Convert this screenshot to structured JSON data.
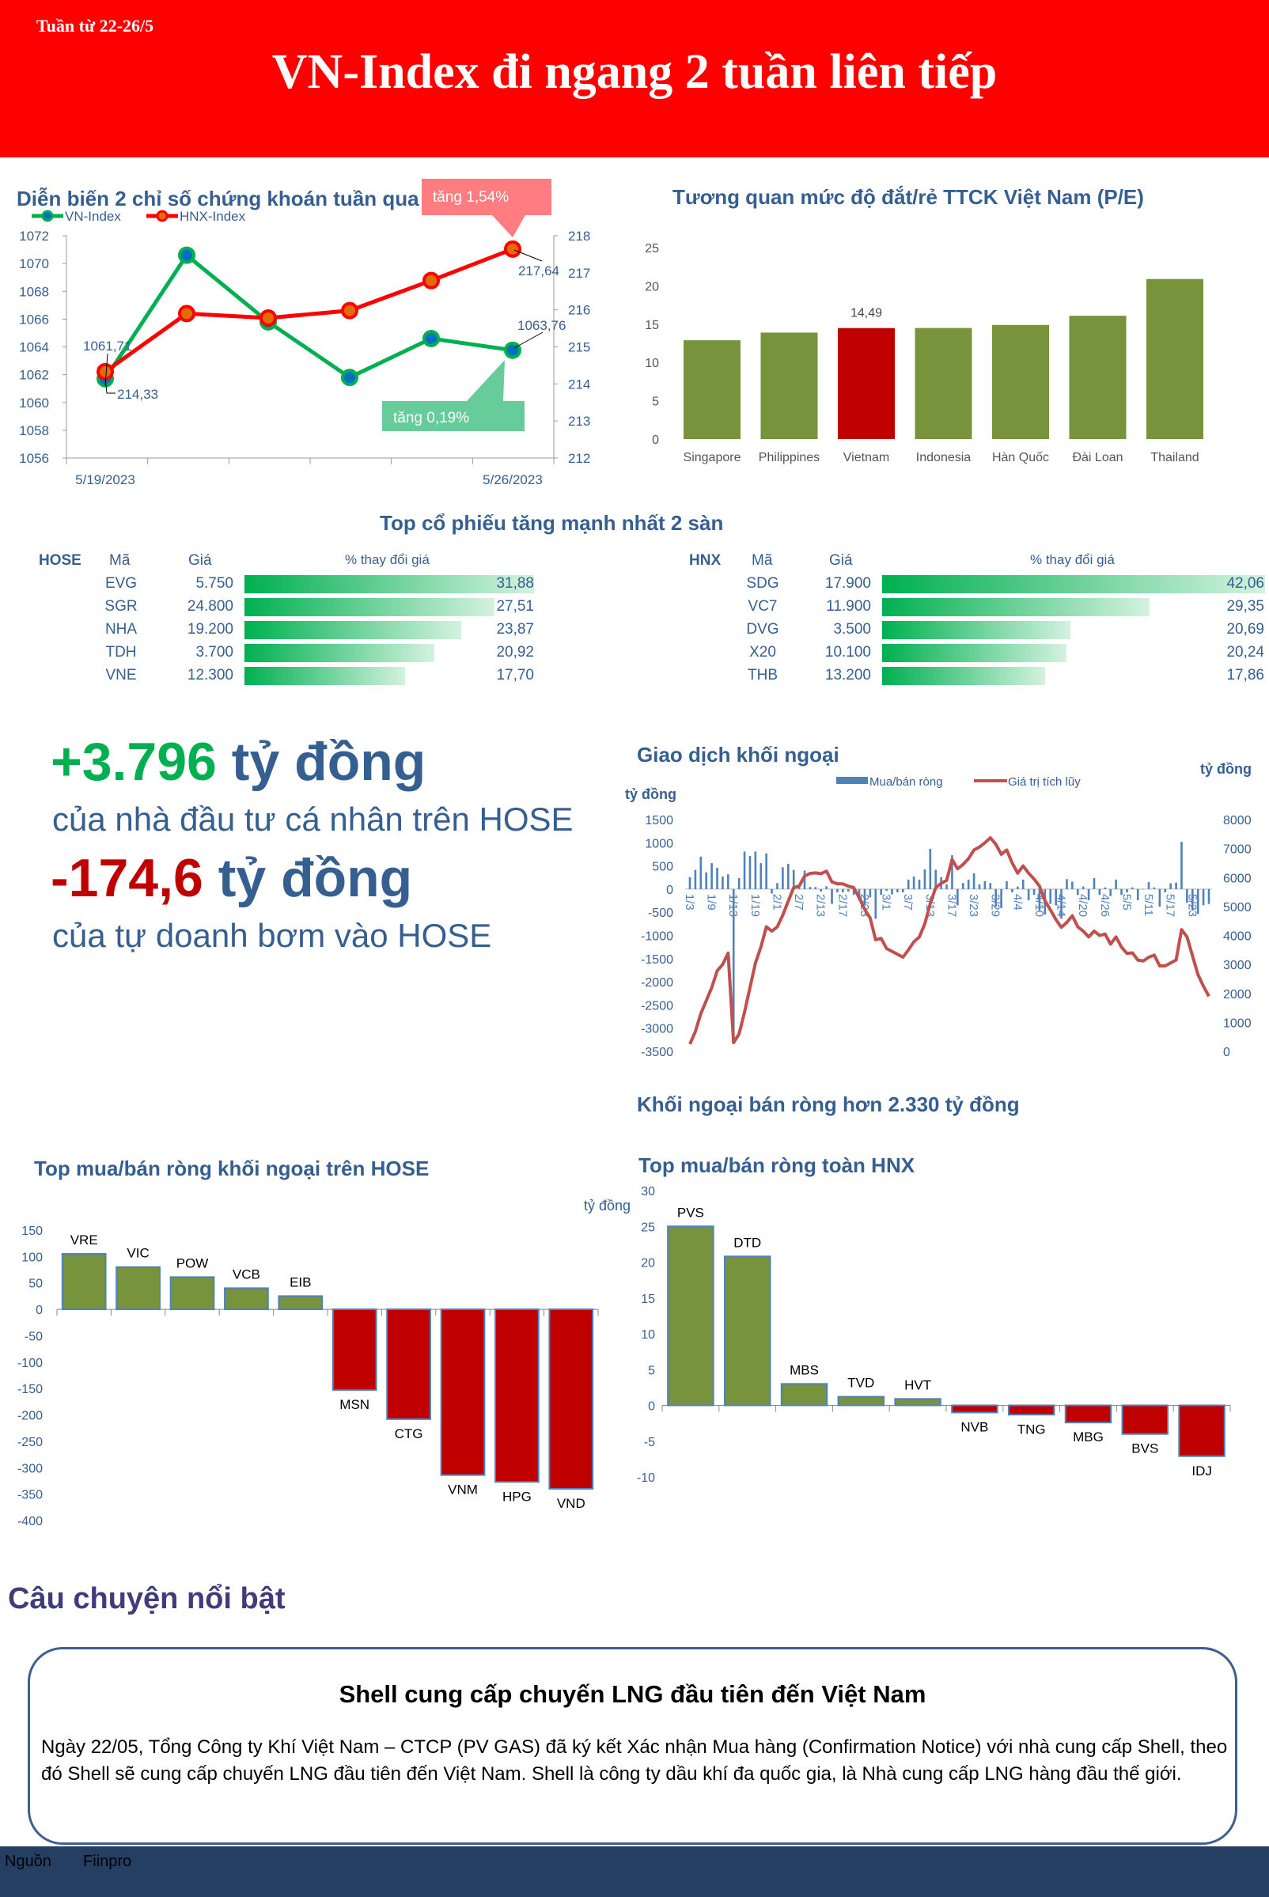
{
  "header": {
    "week": "Tuần từ 22-26/5",
    "title": "VN-Index đi ngang 2 tuần liên tiếp"
  },
  "colors": {
    "header_bg": "#ff0000",
    "green": "#00b050",
    "red": "#c00000",
    "olive": "#77933c",
    "blue_text": "#365f91",
    "footer_bg": "#253f63"
  },
  "top_stocks": {
    "title": "Top cổ phiếu tăng mạnh nhất 2 sàn",
    "hose": {
      "exchange": "HOSE",
      "col_code": "Mã",
      "col_price": "Giá",
      "col_change": "% thay đổi giá",
      "rows": [
        {
          "code": "EVG",
          "price": "5.750",
          "change": "31,88",
          "value": 31.88
        },
        {
          "code": "SGR",
          "price": "24.800",
          "change": "27,51",
          "value": 27.51
        },
        {
          "code": "NHA",
          "price": "19.200",
          "change": "23,87",
          "value": 23.87
        },
        {
          "code": "TDH",
          "price": "3.700",
          "change": "20,92",
          "value": 20.92
        },
        {
          "code": "VNE",
          "price": "12.300",
          "change": "17,70",
          "value": 17.7
        }
      ]
    },
    "hnx": {
      "exchange": "HNX",
      "col_code": "Mã",
      "col_price": "Giá",
      "col_change": "% thay đổi giá",
      "rows": [
        {
          "code": "SDG",
          "price": "17.900",
          "change": "42,06",
          "value": 42.06
        },
        {
          "code": "VC7",
          "price": "11.900",
          "change": "29,35",
          "value": 29.35
        },
        {
          "code": "DVG",
          "price": "3.500",
          "change": "20,69",
          "value": 20.69
        },
        {
          "code": "X20",
          "price": "10.100",
          "change": "20,24",
          "value": 20.24
        },
        {
          "code": "THB",
          "price": "13.200",
          "change": "17,86",
          "value": 17.86
        }
      ]
    }
  },
  "highlights": {
    "retail_value": "+3.796",
    "retail_unit": "tỷ đồng",
    "retail_text": "của nhà đầu tư cá nhân trên HOSE",
    "prop_value": "-174,6",
    "prop_unit": "tỷ đồng",
    "prop_text": "của tự doanh bơm vào HOSE"
  },
  "foreign_caption": "Khối ngoại bán ròng hơn 2.330 tỷ đồng",
  "story": {
    "section_title": "Câu chuyện nổi bật",
    "title": "Shell cung cấp chuyến LNG đầu tiên đến Việt Nam",
    "body": "Ngày 22/05, Tổng Công ty Khí Việt Nam – CTCP (PV GAS) đã ký kết Xác nhận Mua hàng (Confirmation Notice) với nhà cung cấp Shell, theo đó Shell sẽ cung cấp chuyến LNG đầu tiên đến Việt Nam. Shell là công ty dầu khí đa quốc gia, là Nhà cung cấp LNG hàng đầu thế giới."
  },
  "footer": {
    "source_label": "Nguồn",
    "source": "Fiinpro"
  },
  "chart_data": [
    {
      "type": "line",
      "title": "Diễn biến 2 chỉ số chứng khoán tuần qua",
      "x_tick_labels": [
        "5/19/2023",
        "5/26/2023"
      ],
      "y_left_ticks": [
        "1056",
        "1058",
        "1060",
        "1062",
        "1064",
        "1066",
        "1068",
        "1070",
        "1072"
      ],
      "y_right_ticks": [
        "212",
        "213",
        "214",
        "215",
        "216",
        "217",
        "218"
      ],
      "ylim_left": [
        1056,
        1072
      ],
      "ylim_right": [
        212,
        218
      ],
      "legend": "top-left",
      "series": [
        {
          "name": "VN-Index",
          "axis": "left",
          "color": "#00b050",
          "marker": "#0070c0",
          "values": [
            1061.71,
            1070.6,
            1065.8,
            1061.8,
            1064.6,
            1063.76
          ]
        },
        {
          "name": "HNX-Index",
          "axis": "right",
          "color": "#ff0000",
          "marker": "#e36c09",
          "values": [
            214.33,
            215.9,
            215.78,
            215.98,
            216.79,
            217.64
          ]
        }
      ],
      "data_labels": {
        "vn_first": "1061,71",
        "vn_last": "1063,76",
        "hnx_first": "214,33",
        "hnx_last": "217,64"
      },
      "annotations": {
        "hnx_change": "tăng 1,54%",
        "vn_change": "tăng 0,19%"
      }
    },
    {
      "type": "bar",
      "title": "Tương quan mức độ đắt/rẻ TTCK Việt Nam (P/E)",
      "categories": [
        "Singapore",
        "Philippines",
        "Vietnam",
        "Indonesia",
        "Hàn Quốc",
        "Đài Loan",
        "Thailand"
      ],
      "values": [
        12.9,
        13.9,
        14.49,
        14.5,
        14.9,
        16.1,
        20.9
      ],
      "highlight": "Vietnam",
      "data_label": "14,49",
      "y_ticks": [
        "0",
        "5",
        "10",
        "15",
        "20",
        "25"
      ],
      "ylim": [
        0,
        25
      ]
    },
    {
      "type": "bar+line",
      "title": "Giao dịch khối ngoại",
      "ylabel_left": "tỷ đồng",
      "ylabel_right": "tỷ đồng",
      "legend": "top",
      "y_left_ticks": [
        "1500",
        "1000",
        "500",
        "0",
        "-500",
        "-1000",
        "-1500",
        "-2000",
        "-2500",
        "-3000",
        "-3500"
      ],
      "y_right_ticks": [
        "8000",
        "7000",
        "6000",
        "5000",
        "4000",
        "3000",
        "2000",
        "1000",
        "0"
      ],
      "ylim_left": [
        -3500,
        1500
      ],
      "ylim_right": [
        0,
        8000
      ],
      "date_labels": [
        "1/3",
        "1/9",
        "1/13",
        "1/19",
        "2/1",
        "2/7",
        "2/13",
        "2/17",
        "2/23",
        "3/1",
        "3/7",
        "3/13",
        "3/17",
        "3/23",
        "3/29",
        "4/4",
        "4/10",
        "4/14",
        "4/20",
        "4/26",
        "5/5",
        "5/11",
        "5/17",
        "5/23"
      ],
      "series": [
        {
          "name": "Mua/bán ròng",
          "type": "bar",
          "color": "#4f81bd",
          "values": [
            255,
            415,
            700,
            360,
            560,
            460,
            270,
            320,
            -3300,
            240,
            810,
            715,
            810,
            560,
            770,
            -95,
            130,
            470,
            545,
            415,
            100,
            400,
            45,
            45,
            -55,
            60,
            -320,
            -70,
            -70,
            -55,
            -125,
            -240,
            -350,
            -180,
            -640,
            -125,
            -40,
            -115,
            -70,
            -70,
            205,
            270,
            205,
            425,
            870,
            415,
            255,
            100,
            730,
            -350,
            130,
            205,
            340,
            100,
            170,
            130,
            -380,
            -410,
            170,
            -70,
            55,
            205,
            -240,
            -125,
            -465,
            -550,
            -320,
            -350,
            -640,
            215,
            160,
            -125,
            55,
            -240,
            240,
            -125,
            35,
            -150,
            205,
            -125,
            -70,
            35,
            -240,
            -10,
            150,
            35,
            -380,
            -70,
            125,
            140,
            1020,
            -295,
            -465,
            -535,
            -350,
            -320
          ]
        },
        {
          "name": "Giá trị tích lũy",
          "type": "line",
          "color": "#c0504d",
          "values": [
            250,
            680,
            1300,
            1750,
            2200,
            2780,
            3000,
            3390,
            300,
            600,
            1350,
            2200,
            3050,
            3600,
            4300,
            4150,
            4300,
            4700,
            5180,
            5650,
            5700,
            6050,
            6140,
            6160,
            6130,
            6220,
            5850,
            5780,
            5780,
            5700,
            5650,
            5300,
            4900,
            4600,
            3850,
            3900,
            3550,
            3450,
            3350,
            3250,
            3500,
            3780,
            3950,
            4400,
            5100,
            5650,
            5800,
            5900,
            6620,
            6300,
            6450,
            6650,
            6950,
            7050,
            7200,
            7370,
            7150,
            6800,
            6950,
            6500,
            6150,
            6400,
            6150,
            5950,
            5700,
            5200,
            4880,
            4550,
            4280,
            4450,
            4680,
            4300,
            4150,
            3950,
            4150,
            4000,
            4050,
            3700,
            3950,
            3600,
            3380,
            3400,
            3150,
            3120,
            3250,
            3320,
            2950,
            2950,
            3050,
            3150,
            4200,
            3950,
            3300,
            2650,
            2250,
            1900
          ]
        }
      ]
    },
    {
      "type": "bar",
      "title": "Top mua/bán ròng khối ngoại trên HOSE",
      "categories": [
        "VRE",
        "VIC",
        "POW",
        "VCB",
        "EIB",
        "MSN",
        "CTG",
        "VNM",
        "HPG",
        "VND"
      ],
      "values": [
        105,
        80,
        61,
        40,
        25,
        -153,
        -208,
        -314,
        -327,
        -340
      ],
      "y_ticks": [
        "150",
        "100",
        "50",
        "0",
        "-50",
        "-100",
        "-150",
        "-200",
        "-250",
        "-300",
        "-350",
        "-400"
      ],
      "ylim": [
        -400,
        150
      ]
    },
    {
      "type": "bar",
      "title": "Top mua/bán ròng toàn HNX",
      "ylabel": "tỷ đồng",
      "categories": [
        "PVS",
        "DTD",
        "MBS",
        "TVD",
        "HVT",
        "NVB",
        "TNG",
        "MBG",
        "BVS",
        "IDJ"
      ],
      "values": [
        25,
        20.8,
        3,
        1.2,
        0.9,
        -1,
        -1.3,
        -2.4,
        -4,
        -7.1
      ],
      "y_ticks": [
        "30",
        "25",
        "20",
        "15",
        "10",
        "5",
        "0",
        "-5",
        "-10"
      ],
      "ylim": [
        -10,
        30
      ]
    }
  ]
}
